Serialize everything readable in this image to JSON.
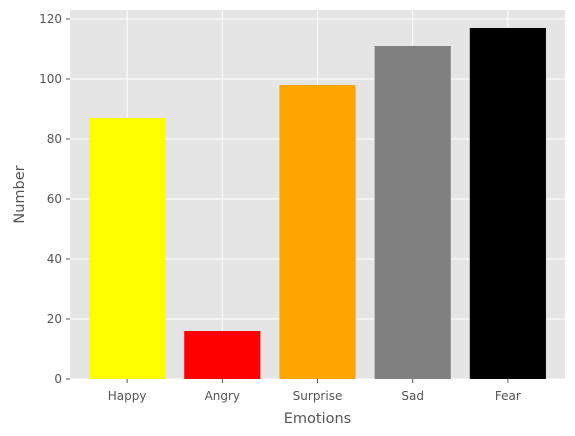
{
  "chart_data": {
    "type": "bar",
    "categories": [
      "Happy",
      "Angry",
      "Surprise",
      "Sad",
      "Fear"
    ],
    "values": [
      87,
      16,
      98,
      111,
      117
    ],
    "colors": [
      "#ffff00",
      "#ff0000",
      "#ffa500",
      "#808080",
      "#000000"
    ],
    "xlabel": "Emotions",
    "ylabel": "Number",
    "ylim": [
      0,
      123
    ],
    "yticks": [
      0,
      20,
      40,
      60,
      80,
      100,
      120
    ],
    "grid": true,
    "style": "ggplot",
    "background": "#e5e5e5",
    "grid_color": "#ffffff"
  }
}
